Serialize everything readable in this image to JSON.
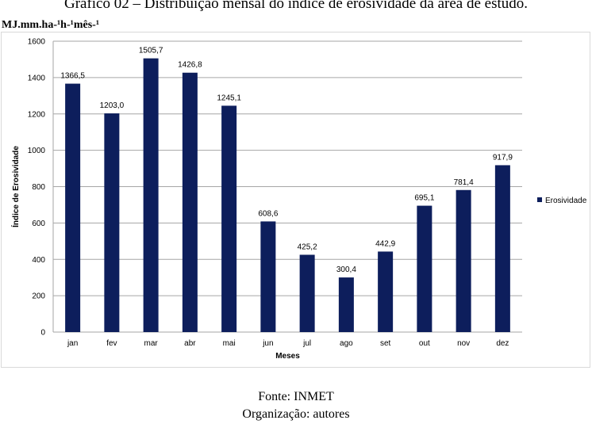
{
  "header": {
    "title": "Gráfico 02 – Distribuição mensal do índice de erosividade da área de estudo.",
    "unit_label": "MJ.mm.ha-¹h-¹mês-¹"
  },
  "footer": {
    "source": "Fonte: INMET",
    "organization": "Organização: autores"
  },
  "colors": {
    "bar": "#0d1e5c",
    "grid": "#a6a6a6",
    "frame": "#d9d9d9"
  },
  "chart_data": {
    "type": "bar",
    "title": "",
    "xlabel": "Meses",
    "ylabel": "Índice de Erosividade",
    "categories": [
      "jan",
      "fev",
      "mar",
      "abr",
      "mai",
      "jun",
      "jul",
      "ago",
      "set",
      "out",
      "nov",
      "dez"
    ],
    "series": [
      {
        "name": "Erosividade",
        "values": [
          1366.5,
          1203.0,
          1505.7,
          1426.8,
          1245.1,
          608.6,
          425.2,
          300.4,
          442.9,
          695.1,
          781.4,
          917.9
        ],
        "labels": [
          "1366,5",
          "1203,0",
          "1505,7",
          "1426,8",
          "1245,1",
          "608,6",
          "425,2",
          "300,4",
          "442,9",
          "695,1",
          "781,4",
          "917,9"
        ]
      }
    ],
    "ylim": [
      0,
      1600
    ],
    "yticks": [
      0,
      200,
      400,
      600,
      800,
      1000,
      1200,
      1400,
      1600
    ],
    "grid": true,
    "legend_position": "right"
  }
}
